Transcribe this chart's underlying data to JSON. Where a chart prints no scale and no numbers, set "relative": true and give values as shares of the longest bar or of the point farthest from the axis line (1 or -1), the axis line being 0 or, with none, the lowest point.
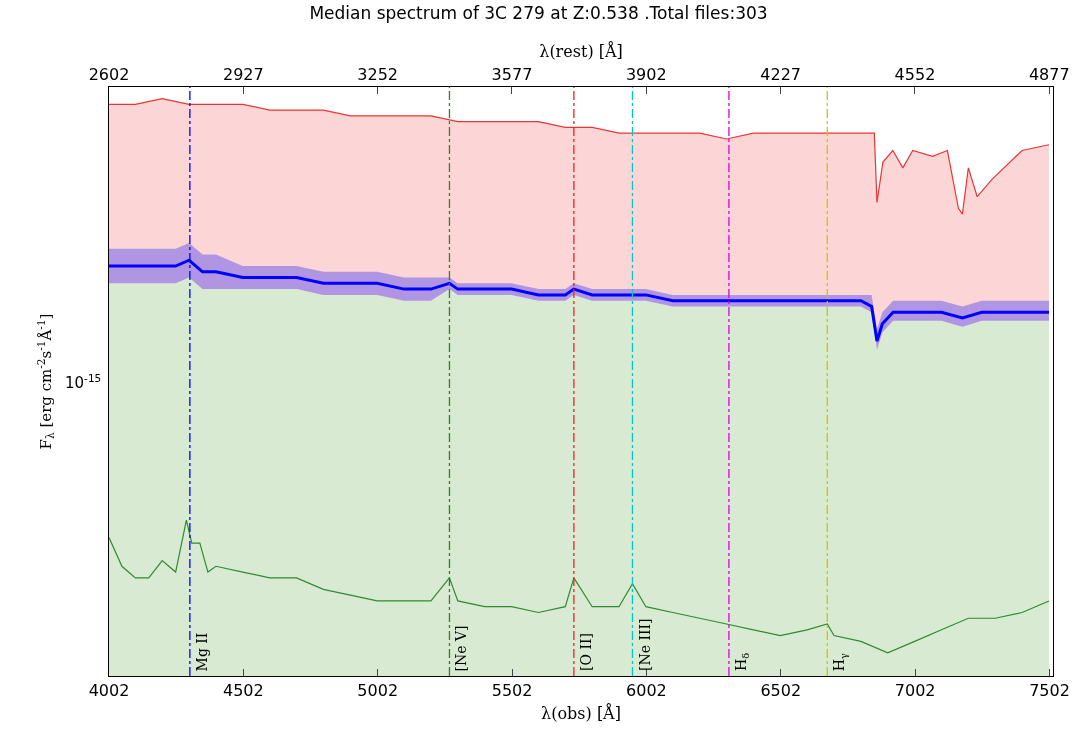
{
  "chart_data": {
    "type": "line",
    "title": "Median spectrum of 3C 279 at Z:0.538 .Total files:303",
    "xlabel": "λ(obs) [Å]",
    "x2label": "λ(rest) [Å]",
    "ylabel": "F$_{λ}$ [erg cm$^{-2}$s$^{-1}$Å$^{-1}$]",
    "relative": true,
    "xlim": [
      4002,
      7515
    ],
    "xticks": [
      4002,
      4502,
      5002,
      5502,
      6002,
      6502,
      7002,
      7502
    ],
    "x2lim": [
      2602,
      4886
    ],
    "x2ticks": [
      2602,
      2927,
      3252,
      3577,
      3902,
      4227,
      4552,
      4877
    ],
    "grid": false,
    "marker": "none",
    "line_style": "solid",
    "annotations": [
      "10$^{-15}$"
    ],
    "series": [
      {
        "type": "area",
        "color": "#ee3333",
        "x": [
          4002,
          4100,
          4200,
          4300,
          4400,
          4500,
          4600,
          4700,
          4800,
          4900,
          5000,
          5100,
          5200,
          5300,
          5400,
          5500,
          5600,
          5700,
          5800,
          5900,
          6000,
          6100,
          6200,
          6300,
          6400,
          6500,
          6600,
          6700,
          6800,
          6850,
          6860,
          6882,
          6919,
          6956,
          6993,
          7067,
          7122,
          7163,
          7178,
          7200,
          7233,
          7288,
          7400,
          7500
        ],
        "values": [
          0.99,
          0.99,
          1.0,
          0.99,
          0.99,
          0.99,
          0.98,
          0.98,
          0.98,
          0.97,
          0.97,
          0.97,
          0.97,
          0.96,
          0.96,
          0.96,
          0.96,
          0.95,
          0.95,
          0.94,
          0.94,
          0.94,
          0.94,
          0.93,
          0.94,
          0.94,
          0.94,
          0.94,
          0.94,
          0.94,
          0.82,
          0.89,
          0.91,
          0.88,
          0.91,
          0.9,
          0.91,
          0.81,
          0.8,
          0.88,
          0.83,
          0.86,
          0.91,
          0.92
        ]
      },
      {
        "type": "area",
        "color": "#d9ead3",
        "x": [
          4002,
          4100,
          4200,
          4250,
          4300,
          4350,
          4400,
          4500,
          4600,
          4700,
          4800,
          4900,
          5000,
          5100,
          5200,
          5269,
          5300,
          5400,
          5500,
          5600,
          5700,
          5732,
          5800,
          5900,
          5950,
          6000,
          6100,
          6200,
          6300,
          6400,
          6500,
          6600,
          6700,
          6800,
          6840,
          6860,
          6880,
          6920,
          7000,
          7100,
          7178,
          7250,
          7350,
          7500
        ],
        "values": [
          0.68,
          0.68,
          0.68,
          0.68,
          0.69,
          0.67,
          0.67,
          0.67,
          0.67,
          0.67,
          0.66,
          0.66,
          0.66,
          0.65,
          0.65,
          0.67,
          0.66,
          0.66,
          0.66,
          0.65,
          0.65,
          0.66,
          0.65,
          0.65,
          0.65,
          0.65,
          0.64,
          0.64,
          0.64,
          0.64,
          0.64,
          0.64,
          0.64,
          0.64,
          0.63,
          0.565,
          0.595,
          0.615,
          0.615,
          0.615,
          0.605,
          0.615,
          0.615,
          0.615
        ]
      },
      {
        "color": "#0000ff",
        "x": [
          4002,
          4100,
          4200,
          4250,
          4300,
          4350,
          4400,
          4500,
          4600,
          4700,
          4800,
          4900,
          5000,
          5100,
          5200,
          5269,
          5300,
          5400,
          5500,
          5600,
          5700,
          5732,
          5800,
          5900,
          5950,
          6000,
          6100,
          6200,
          6300,
          6400,
          6500,
          6600,
          6700,
          6800,
          6840,
          6860,
          6880,
          6920,
          7000,
          7100,
          7178,
          7250,
          7350,
          7500
        ],
        "values": [
          0.71,
          0.71,
          0.71,
          0.71,
          0.72,
          0.7,
          0.7,
          0.69,
          0.69,
          0.69,
          0.68,
          0.68,
          0.68,
          0.67,
          0.67,
          0.68,
          0.67,
          0.67,
          0.67,
          0.66,
          0.66,
          0.67,
          0.66,
          0.66,
          0.66,
          0.66,
          0.65,
          0.65,
          0.65,
          0.65,
          0.65,
          0.65,
          0.65,
          0.65,
          0.64,
          0.58,
          0.61,
          0.63,
          0.63,
          0.63,
          0.62,
          0.63,
          0.63,
          0.63
        ],
        "lower": [
          0.68,
          0.68,
          0.68,
          0.68,
          0.69,
          0.67,
          0.67,
          0.67,
          0.67,
          0.67,
          0.66,
          0.66,
          0.66,
          0.65,
          0.65,
          0.67,
          0.66,
          0.66,
          0.66,
          0.65,
          0.65,
          0.66,
          0.65,
          0.65,
          0.65,
          0.65,
          0.64,
          0.64,
          0.64,
          0.64,
          0.64,
          0.64,
          0.64,
          0.64,
          0.63,
          0.565,
          0.595,
          0.615,
          0.615,
          0.615,
          0.605,
          0.615,
          0.615,
          0.615
        ],
        "upper": [
          0.74,
          0.74,
          0.74,
          0.74,
          0.75,
          0.73,
          0.73,
          0.71,
          0.71,
          0.71,
          0.7,
          0.7,
          0.7,
          0.69,
          0.69,
          0.69,
          0.68,
          0.68,
          0.68,
          0.67,
          0.67,
          0.68,
          0.67,
          0.67,
          0.67,
          0.67,
          0.66,
          0.66,
          0.66,
          0.66,
          0.66,
          0.66,
          0.66,
          0.66,
          0.66,
          0.6,
          0.63,
          0.65,
          0.65,
          0.65,
          0.64,
          0.65,
          0.65,
          0.65
        ]
      },
      {
        "color": "#2e8b2e",
        "x": [
          4002,
          4050,
          4100,
          4150,
          4200,
          4250,
          4290,
          4310,
          4340,
          4370,
          4400,
          4500,
          4600,
          4700,
          4800,
          4900,
          5000,
          5100,
          5200,
          5269,
          5300,
          5400,
          5500,
          5600,
          5700,
          5732,
          5800,
          5900,
          5950,
          6000,
          6100,
          6200,
          6300,
          6400,
          6500,
          6600,
          6675,
          6700,
          6800,
          6900,
          7000,
          7100,
          7200,
          7300,
          7400,
          7500
        ],
        "values": [
          0.24,
          0.19,
          0.17,
          0.17,
          0.2,
          0.18,
          0.27,
          0.23,
          0.23,
          0.18,
          0.19,
          0.18,
          0.17,
          0.17,
          0.15,
          0.14,
          0.13,
          0.13,
          0.13,
          0.17,
          0.13,
          0.12,
          0.12,
          0.11,
          0.12,
          0.17,
          0.12,
          0.12,
          0.16,
          0.12,
          0.11,
          0.1,
          0.09,
          0.08,
          0.07,
          0.08,
          0.09,
          0.07,
          0.06,
          0.04,
          0.06,
          0.08,
          0.1,
          0.1,
          0.11,
          0.13
        ]
      }
    ],
    "ref_lines": [
      {
        "axis": "x",
        "value": 4303,
        "label": "Mg II",
        "color": "#0000ff",
        "line_style": "dashed"
      },
      {
        "axis": "x",
        "value": 5269,
        "label": "[Ne V]",
        "color": "#3a7a2a",
        "line_style": "dashed"
      },
      {
        "axis": "x",
        "value": 5732,
        "label": "[O II]",
        "color": "#ee2222",
        "line_style": "dashed"
      },
      {
        "axis": "x",
        "value": 5950,
        "label": "[Ne III]",
        "color": "#00c8c8",
        "line_style": "dashed"
      },
      {
        "axis": "x",
        "value": 6309,
        "label": "H$_{δ}$",
        "color": "#dd00dd",
        "line_style": "dashed"
      },
      {
        "axis": "x",
        "value": 6675,
        "label": "H$_{γ}$",
        "color": "#c8c800",
        "line_style": "dashed"
      }
    ]
  }
}
